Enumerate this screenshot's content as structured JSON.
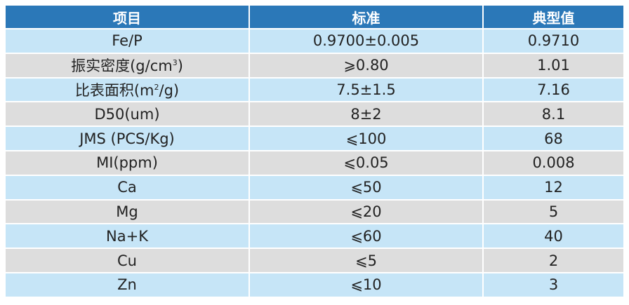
{
  "header": {
    "item": "项目",
    "standard": "标准",
    "typical": "典型值"
  },
  "colors": {
    "header": "#2b78b8",
    "row_blue": "#c6e5f7",
    "row_gray": "#dddddd"
  },
  "rows": [
    {
      "item": "Fe/P",
      "standard": "0.9700±0.005",
      "typical": "0.9710"
    },
    {
      "item": "振实密度(g/cm",
      "item_sup": "3",
      "item_end": ")",
      "standard": "⩾0.80",
      "typical": "1.01"
    },
    {
      "item": "比表面积(m",
      "item_sup": "2",
      "item_end": "/g)",
      "standard": "7.5±1.5",
      "typical": "7.16"
    },
    {
      "item": "D50(um)",
      "standard": "8±2",
      "typical": "8.1"
    },
    {
      "item": "JMS (PCS/Kg)",
      "standard": "⩽100",
      "typical": "68"
    },
    {
      "item": "MI(ppm)",
      "standard": "⩽0.05",
      "typical": "0.008"
    },
    {
      "item": "Ca",
      "standard": "⩽50",
      "typical": "12"
    },
    {
      "item": "Mg",
      "standard": "⩽20",
      "typical": "5"
    },
    {
      "item": "Na+K",
      "standard": "⩽60",
      "typical": "40"
    },
    {
      "item": "Cu",
      "standard": "⩽5",
      "typical": "2"
    },
    {
      "item": "Zn",
      "standard": "⩽10",
      "typical": "3"
    }
  ]
}
